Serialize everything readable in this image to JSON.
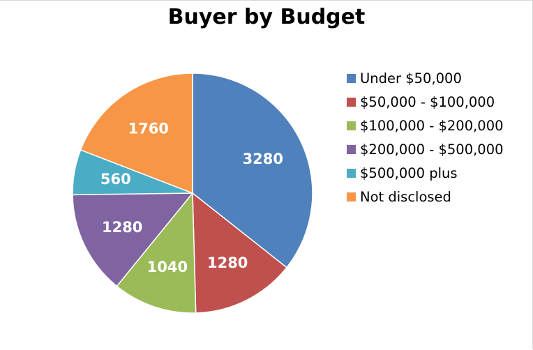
{
  "chart_data": {
    "type": "pie",
    "title": "Buyer by Budget",
    "legend_position": "right",
    "start_angle_deg": 0,
    "direction": "clockwise",
    "slices": [
      {
        "label": "Under $50,000",
        "value": 3280,
        "display": "3280",
        "color": "#4F81BD"
      },
      {
        "label": "$50,000 - $100,000",
        "value": 1280,
        "display": "1280",
        "color": "#C0504D"
      },
      {
        "label": "$100,000 - $200,000",
        "value": 1040,
        "display": "1040",
        "color": "#9BBB59"
      },
      {
        "label": "$200,000 - $500,000",
        "value": 1280,
        "display": "1280",
        "color": "#8064A2"
      },
      {
        "label": "$500,000 plus",
        "value": 560,
        "display": "560",
        "color": "#4BACC6"
      },
      {
        "label": "Not disclosed",
        "value": 1760,
        "display": "1760",
        "color": "#F79646"
      }
    ]
  }
}
